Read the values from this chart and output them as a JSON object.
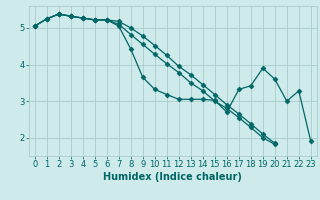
{
  "xlabel": "Humidex (Indice chaleur)",
  "ylabel": "",
  "background_color": "#ceeaea",
  "grid_color": "#a8cccc",
  "line_color": "#006666",
  "xlim": [
    -0.5,
    23.5
  ],
  "ylim": [
    1.5,
    5.6
  ],
  "yticks": [
    2,
    3,
    4,
    5
  ],
  "xtick_labels": [
    "0",
    "1",
    "2",
    "3",
    "4",
    "5",
    "6",
    "7",
    "8",
    "9",
    "10",
    "11",
    "12",
    "13",
    "14",
    "15",
    "16",
    "17",
    "18",
    "19",
    "20",
    "21",
    "22",
    "23"
  ],
  "series": [
    {
      "x": [
        0,
        1,
        2,
        3,
        4,
        5,
        6,
        7,
        8,
        9,
        10,
        11,
        12,
        13,
        14,
        15,
        16,
        17,
        18,
        19,
        20,
        21,
        22,
        23
      ],
      "y": [
        5.05,
        5.25,
        5.38,
        5.32,
        5.27,
        5.22,
        5.22,
        5.18,
        5.0,
        4.78,
        4.52,
        4.25,
        3.95,
        3.72,
        3.45,
        3.18,
        2.9,
        2.65,
        2.38,
        2.1,
        1.85,
        null,
        null,
        null
      ]
    },
    {
      "x": [
        0,
        1,
        2,
        3,
        4,
        5,
        6,
        7,
        8,
        9,
        10,
        11,
        12,
        13,
        14,
        15,
        16,
        17,
        18,
        19,
        20,
        21,
        22,
        23
      ],
      "y": [
        5.05,
        5.25,
        5.38,
        5.32,
        5.27,
        5.22,
        5.22,
        5.1,
        4.82,
        4.55,
        4.28,
        4.02,
        3.78,
        3.5,
        3.28,
        3.0,
        2.8,
        2.55,
        2.28,
        2.0,
        1.82,
        null,
        null,
        null
      ]
    },
    {
      "x": [
        0,
        1,
        2,
        3,
        4,
        5,
        6,
        7,
        8,
        9,
        10,
        11,
        12,
        13,
        14,
        15,
        16,
        17,
        18,
        19,
        20,
        21,
        22,
        23
      ],
      "y": [
        5.05,
        5.25,
        5.38,
        5.32,
        5.27,
        5.22,
        5.22,
        5.05,
        4.42,
        3.65,
        3.32,
        3.18,
        3.05,
        3.05,
        3.05,
        3.02,
        2.7,
        3.32,
        3.42,
        3.9,
        3.6,
        3.0,
        3.28,
        1.9
      ]
    }
  ],
  "marker": "D",
  "marker_size": 2.5,
  "font_size_label": 7,
  "font_size_tick": 6,
  "line_width": 0.9
}
